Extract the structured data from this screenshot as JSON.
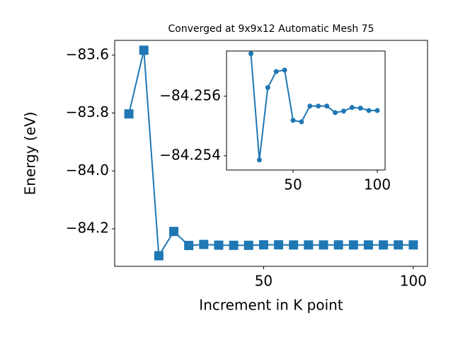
{
  "chart_data": [
    {
      "type": "line",
      "title": "Converged at 9x9x12 Automatic Mesh 75",
      "x_label": "Increment in K point",
      "y_label": "Energy (eV)",
      "x": [
        5,
        10,
        15,
        20,
        25,
        30,
        35,
        40,
        45,
        50,
        55,
        60,
        65,
        70,
        75,
        80,
        85,
        90,
        95,
        100
      ],
      "values": [
        -83.803,
        -83.583,
        -84.293,
        -84.209,
        -84.25743,
        -84.25386,
        -84.25629,
        -84.25683,
        -84.25688,
        -84.25519,
        -84.25514,
        -84.25567,
        -84.25567,
        -84.25567,
        -84.25545,
        -84.2555,
        -84.25562,
        -84.2556,
        -84.25552,
        -84.25552
      ],
      "color": "#1f77b4",
      "marker": "square",
      "xlim": [
        0.25,
        104.75
      ],
      "ylim": [
        -84.3295,
        -83.549
      ],
      "xticks": [
        50,
        100
      ],
      "yticks": [
        {
          "value": -83.6,
          "label": "−83.6"
        },
        {
          "value": -83.8,
          "label": "−83.8"
        },
        {
          "value": -84.0,
          "label": "−84.0"
        },
        {
          "value": -84.2,
          "label": "−84.2"
        }
      ]
    },
    {
      "type": "line",
      "x": [
        25,
        30,
        35,
        40,
        45,
        50,
        55,
        60,
        65,
        70,
        75,
        80,
        85,
        90,
        95,
        100
      ],
      "values": [
        -84.25743,
        -84.25386,
        -84.25629,
        -84.25683,
        -84.25688,
        -84.25519,
        -84.25514,
        -84.25567,
        -84.25567,
        -84.25567,
        -84.25545,
        -84.2555,
        -84.25562,
        -84.2556,
        -84.25552,
        -84.25552
      ],
      "color": "#1f77b4",
      "marker": "circle",
      "xlim": [
        10.5,
        104.6
      ],
      "ylim": [
        -84.25352,
        -84.25752
      ],
      "xticks": [
        50,
        100
      ],
      "yticks": [
        {
          "value": -84.256,
          "label": "−84.256"
        },
        {
          "value": -84.254,
          "label": "−84.254"
        }
      ]
    }
  ]
}
